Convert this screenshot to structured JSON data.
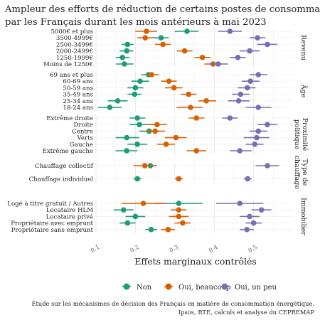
{
  "chart_data": {
    "type": "scatter",
    "title": "Ampleur des efforts de réduction de certains postes de consommation pratiqués par les Français durant les mois antérieurs à mai 2023",
    "xlabel": "Effets marginaux contrôlés",
    "ylabel": "",
    "xlim": [
      0.1,
      0.6
    ],
    "xticks": [
      "0.1",
      "0.2",
      "0.3",
      "0.4",
      "0.5"
    ],
    "grid": true,
    "legend_position": "bottom",
    "colors": {
      "Non": "#1b9e77",
      "Oui, beaucoup": "#d95f02",
      "Oui, un peu": "#7570b3"
    },
    "series": [
      {
        "name": "Non"
      },
      {
        "name": "Oui, beaucoup"
      },
      {
        "name": "Oui, un peu"
      }
    ],
    "caption": [
      "Étude sur les mécanismes de décision des Français en matière de consommation énergétique.",
      "Ipsos, RTE, calculs et analyse du CEPREMAP"
    ],
    "panels": [
      {
        "label": "Revenu",
        "rows": [
          {
            "label": "5000€ et plus",
            "Non": [
              0.331,
              0.3,
              0.36
            ],
            "Oui, beaucoup": [
              0.228,
              0.2,
              0.255
            ],
            "Oui, un peu": [
              0.44,
              0.41,
              0.47
            ]
          },
          {
            "label": "3500-4999€",
            "Non": [
              0.265,
              0.245,
              0.285
            ],
            "Oui, beaucoup": [
              0.225,
              0.205,
              0.245
            ],
            "Oui, un peu": [
              0.51,
              0.49,
              0.53
            ]
          },
          {
            "label": "2500-3499€",
            "Non": [
              0.18,
              0.165,
              0.195
            ],
            "Oui, beaucoup": [
              0.27,
              0.25,
              0.29
            ],
            "Oui, un peu": [
              0.535,
              0.51,
              0.56
            ]
          },
          {
            "label": "2000-2499€",
            "Non": [
              0.178,
              0.16,
              0.195
            ],
            "Oui, beaucoup": [
              0.325,
              0.305,
              0.345
            ],
            "Oui, un peu": [
              0.49,
              0.465,
              0.515
            ]
          },
          {
            "label": "1250-1999€",
            "Non": [
              0.167,
              0.15,
              0.185
            ],
            "Oui, beaucoup": [
              0.37,
              0.35,
              0.39
            ],
            "Oui, un peu": [
              0.46,
              0.44,
              0.48
            ]
          },
          {
            "label": "Moins de 1250€",
            "Non": [
              0.172,
              0.15,
              0.195
            ],
            "Oui, beaucoup": [
              0.397,
              0.375,
              0.42
            ],
            "Oui, un peu": [
              0.41,
              0.385,
              0.435
            ]
          }
        ]
      },
      {
        "label": "Âge",
        "rows": [
          {
            "label": "69 ans et plus",
            "Non": [
              0.233,
              0.215,
              0.25
            ],
            "Oui, beaucoup": [
              0.241,
              0.225,
              0.26
            ],
            "Oui, un peu": [
              0.512,
              0.49,
              0.535
            ]
          },
          {
            "label": "60-69 ans",
            "Non": [
              0.212,
              0.19,
              0.235
            ],
            "Oui, beaucoup": [
              0.285,
              0.265,
              0.305
            ],
            "Oui, un peu": [
              0.492,
              0.47,
              0.515
            ]
          },
          {
            "label": "50-59 ans",
            "Non": [
              0.2,
              0.18,
              0.22
            ],
            "Oui, beaucoup": [
              0.298,
              0.275,
              0.32
            ],
            "Oui, un peu": [
              0.484,
              0.46,
              0.505
            ]
          },
          {
            "label": "35-49 ans",
            "Non": [
              0.198,
              0.18,
              0.215
            ],
            "Oui, beaucoup": [
              0.335,
              0.315,
              0.355
            ],
            "Oui, un peu": [
              0.467,
              0.445,
              0.49
            ]
          },
          {
            "label": "25-34 ans",
            "Non": [
              0.155,
              0.13,
              0.18
            ],
            "Oui, beaucoup": [
              0.38,
              0.36,
              0.405
            ],
            "Oui, un peu": [
              0.462,
              0.435,
              0.49
            ]
          },
          {
            "label": "18-24 ans",
            "Non": [
              0.135,
              0.105,
              0.165
            ],
            "Oui, beaucoup": [
              0.34,
              0.305,
              0.37
            ],
            "Oui, un peu": [
              0.512,
              0.48,
              0.545
            ]
          }
        ]
      },
      {
        "label": "Proximité politique",
        "rows": [
          {
            "label": "Extrême droite",
            "Non": [
              0.205,
              0.185,
              0.225
            ],
            "Oui, beaucoup": [
              0.355,
              0.335,
              0.375
            ],
            "Oui, un peu": [
              0.44,
              0.42,
              0.46
            ]
          },
          {
            "label": "Droite",
            "Non": [
              0.21,
              0.185,
              0.235
            ],
            "Oui, beaucoup": [
              0.255,
              0.23,
              0.28
            ],
            "Oui, un peu": [
              0.535,
              0.51,
              0.56
            ]
          },
          {
            "label": "Centre",
            "Non": [
              0.235,
              0.21,
              0.26
            ],
            "Oui, beaucoup": [
              0.25,
              0.225,
              0.275
            ],
            "Oui, un peu": [
              0.512,
              0.49,
              0.535
            ]
          },
          {
            "label": "Verts",
            "Non": [
              0.178,
              0.15,
              0.21
            ],
            "Oui, beaucoup": [
              0.303,
              0.275,
              0.33
            ],
            "Oui, un peu": [
              0.508,
              0.475,
              0.54
            ]
          },
          {
            "label": "Gauche",
            "Non": [
              0.205,
              0.18,
              0.23
            ],
            "Oui, beaucoup": [
              0.278,
              0.255,
              0.3
            ],
            "Oui, un peu": [
              0.503,
              0.48,
              0.525
            ]
          },
          {
            "label": "Extrême gauche",
            "Non": [
              0.178,
              0.15,
              0.205
            ],
            "Oui, beaucoup": [
              0.355,
              0.33,
              0.38
            ],
            "Oui, un peu": [
              0.465,
              0.44,
              0.495
            ]
          }
        ]
      },
      {
        "label": "Type de chauffage",
        "rows": [
          {
            "label": "Chauffage collectif",
            "Non": [
              0.238,
              0.22,
              0.255
            ],
            "Oui, beaucoup": [
              0.224,
              0.195,
              0.25
            ],
            "Oui, un peu": [
              0.535,
              0.505,
              0.565
            ]
          },
          {
            "label": "",
            "Non": null,
            "Oui, beaucoup": null,
            "Oui, un peu": null
          },
          {
            "label": "Chauffage individuel",
            "Non": [
              0.205,
              0.195,
              0.215
            ],
            "Oui, beaucoup": [
              0.31,
              0.3,
              0.32
            ],
            "Oui, un peu": [
              0.485,
              0.475,
              0.495
            ]
          }
        ]
      },
      {
        "label": "Immobilier",
        "rows": [
          {
            "label": "Logé à titre gratuit / Autres",
            "Non": [
              0.31,
              0.25,
              0.37
            ],
            "Oui, beaucoup": [
              0.22,
              0.165,
              0.275
            ],
            "Oui, un peu": [
              0.465,
              0.405,
              0.525
            ]
          },
          {
            "label": "Locataire HLM",
            "Non": [
              0.17,
              0.145,
              0.195
            ],
            "Oui, beaucoup": [
              0.31,
              0.29,
              0.33
            ],
            "Oui, un peu": [
              0.52,
              0.495,
              0.545
            ]
          },
          {
            "label": "Locataire privé",
            "Non": [
              0.2,
              0.175,
              0.225
            ],
            "Oui, beaucoup": [
              0.31,
              0.285,
              0.335
            ],
            "Oui, un peu": [
              0.49,
              0.465,
              0.515
            ]
          },
          {
            "label": "Propriétaire avec emprunt",
            "Non": [
              0.18,
              0.16,
              0.2
            ],
            "Oui, beaucoup": [
              0.32,
              0.3,
              0.34
            ],
            "Oui, un peu": [
              0.5,
              0.48,
              0.52
            ]
          },
          {
            "label": "Propriétaire sans emprunt",
            "Non": [
              0.24,
              0.225,
              0.255
            ],
            "Oui, beaucoup": [
              0.283,
              0.265,
              0.3
            ],
            "Oui, un peu": [
              0.483,
              0.465,
              0.5
            ]
          }
        ]
      }
    ]
  }
}
